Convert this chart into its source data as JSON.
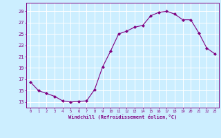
{
  "x": [
    0,
    1,
    2,
    3,
    4,
    5,
    6,
    7,
    8,
    9,
    10,
    11,
    12,
    13,
    14,
    15,
    16,
    17,
    18,
    19,
    20,
    21,
    22,
    23
  ],
  "y": [
    16.5,
    15.0,
    14.5,
    14.0,
    13.2,
    13.0,
    13.1,
    13.2,
    15.2,
    19.2,
    22.0,
    25.0,
    25.5,
    26.2,
    26.5,
    28.2,
    28.8,
    29.0,
    28.5,
    27.5,
    27.5,
    25.2,
    22.5,
    21.5
  ],
  "line_color": "#800080",
  "marker": "D",
  "marker_size": 2.0,
  "bg_color": "#cceeff",
  "grid_color": "#ffffff",
  "xlabel": "Windchill (Refroidissement éolien,°C)",
  "xlabel_color": "#800080",
  "ylabel_ticks": [
    13,
    15,
    17,
    19,
    21,
    23,
    25,
    27,
    29
  ],
  "xtick_labels": [
    "0",
    "1",
    "2",
    "3",
    "4",
    "5",
    "6",
    "7",
    "8",
    "9",
    "10",
    "11",
    "12",
    "13",
    "14",
    "15",
    "16",
    "17",
    "18",
    "19",
    "20",
    "21",
    "22",
    "23"
  ],
  "ylim": [
    12.0,
    30.5
  ],
  "xlim": [
    -0.5,
    23.5
  ],
  "tick_color": "#800080",
  "axis_color": "#800080"
}
